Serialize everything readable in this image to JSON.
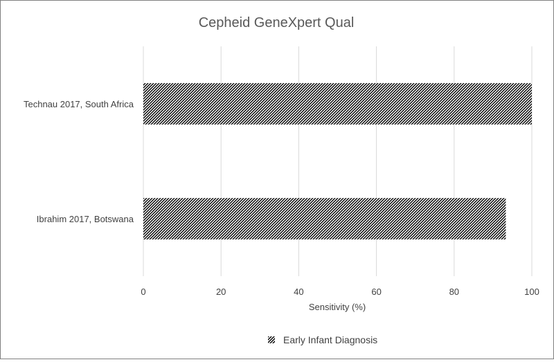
{
  "chart_data": {
    "type": "bar",
    "orientation": "horizontal",
    "title": "Cepheid GeneXpert Qual",
    "xlabel": "Sensitivity (%)",
    "ylabel": "",
    "categories": [
      "Technau 2017, South Africa",
      "Ibrahim 2017, Botswana"
    ],
    "series": [
      {
        "name": "Early Infant Diagnosis",
        "values": [
          100,
          93.3
        ]
      }
    ],
    "xlim": [
      0,
      100
    ],
    "xticks": [
      0,
      20,
      40,
      60,
      80,
      100
    ],
    "grid": true,
    "legend_position": "bottom",
    "colors": {
      "bar_fill": "#ffffff",
      "bar_hatch": "#000000",
      "grid": "#d9d9d9",
      "text": "#404040",
      "title": "#595959",
      "frame": "#7f7f7f"
    }
  }
}
